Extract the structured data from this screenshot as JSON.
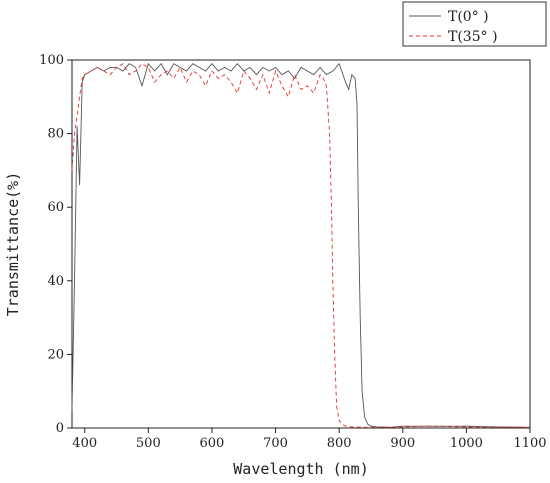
{
  "chart_data": {
    "type": "line",
    "title": "",
    "xlabel": "Wavelength (nm)",
    "ylabel": "Transmittance(%)",
    "xlim": [
      380,
      1100
    ],
    "ylim": [
      0,
      100
    ],
    "xticks": [
      400,
      500,
      600,
      700,
      800,
      900,
      1000,
      1100
    ],
    "yticks": [
      0,
      20,
      40,
      60,
      80,
      100
    ],
    "grid": false,
    "legend_position": "top-right outside",
    "series": [
      {
        "name": "T(0° )",
        "color": "#555555",
        "dash": "none",
        "x": [
          380,
          384,
          388,
          392,
          396,
          400,
          410,
          420,
          430,
          440,
          450,
          460,
          470,
          480,
          490,
          500,
          510,
          520,
          530,
          540,
          550,
          560,
          570,
          580,
          590,
          600,
          610,
          620,
          630,
          640,
          650,
          660,
          670,
          680,
          690,
          700,
          710,
          720,
          730,
          740,
          750,
          760,
          770,
          780,
          790,
          800,
          810,
          815,
          820,
          825,
          828,
          830,
          833,
          836,
          840,
          845,
          850,
          860,
          880,
          900,
          950,
          1000,
          1050,
          1100
        ],
        "y": [
          5,
          40,
          82,
          66,
          94,
          96,
          97,
          98,
          97,
          98,
          98,
          97,
          99,
          98,
          93,
          99,
          97,
          99,
          96,
          99,
          98,
          97,
          99,
          98,
          97,
          99,
          97,
          98,
          97,
          99,
          97,
          98,
          96,
          98,
          97,
          98,
          96,
          97,
          95,
          98,
          97,
          96,
          98,
          96,
          97,
          99,
          94,
          92,
          96,
          95,
          88,
          60,
          30,
          10,
          3,
          1,
          0.5,
          0.3,
          0.2,
          0.5,
          0.5,
          0.5,
          0.3,
          0.2
        ]
      },
      {
        "name": "T(35° )",
        "color": "#e2312d",
        "dash": "4,3",
        "x": [
          380,
          384,
          388,
          392,
          396,
          400,
          410,
          420,
          430,
          440,
          450,
          460,
          470,
          480,
          490,
          500,
          510,
          520,
          530,
          540,
          550,
          560,
          570,
          580,
          590,
          600,
          610,
          620,
          630,
          640,
          650,
          660,
          670,
          680,
          690,
          700,
          710,
          720,
          730,
          740,
          750,
          760,
          770,
          775,
          780,
          785,
          788,
          790,
          793,
          796,
          800,
          805,
          810,
          820,
          840,
          860,
          900,
          940,
          1000,
          1100
        ],
        "y": [
          70,
          80,
          85,
          90,
          95,
          96,
          97,
          98,
          97,
          96,
          98,
          99,
          96,
          97,
          99,
          98,
          94,
          96,
          97,
          95,
          98,
          94,
          97,
          96,
          93,
          97,
          95,
          96,
          94,
          91,
          97,
          95,
          92,
          96,
          91,
          97,
          93,
          90,
          96,
          92,
          93,
          91,
          96,
          95,
          93,
          80,
          60,
          40,
          20,
          6,
          2,
          1,
          0.5,
          0.3,
          0.2,
          0.2,
          0.3,
          0.5,
          0.3,
          0.2
        ]
      }
    ]
  }
}
